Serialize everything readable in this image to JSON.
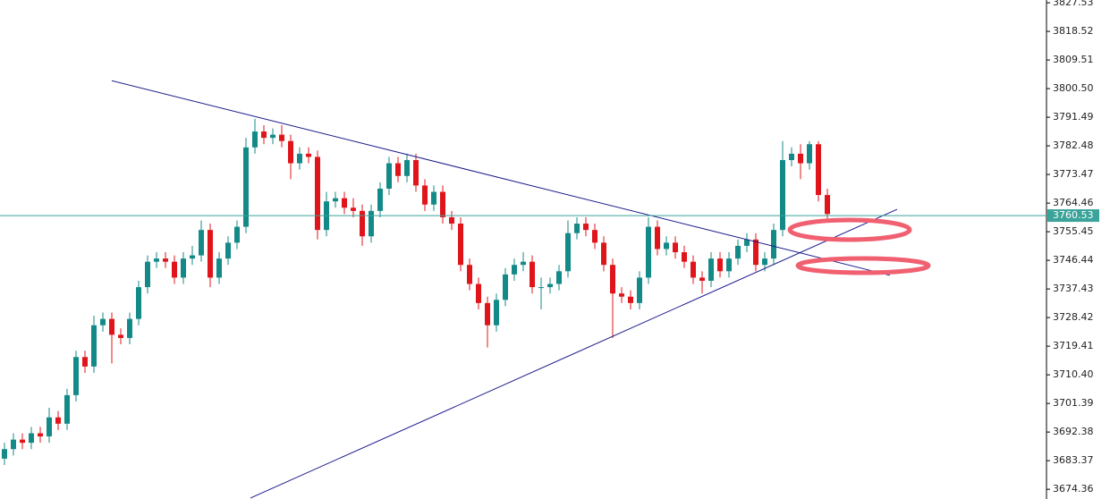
{
  "chart_data": {
    "type": "candlestick",
    "ylim": [
      3671.3,
      3828.4
    ],
    "yticks": [
      3674.36,
      3683.37,
      3692.38,
      3701.39,
      {
        "value": 3710.4,
        "label": "3710.40"
      },
      3719.41,
      3728.42,
      3737.43,
      3746.44,
      3755.45,
      3764.46,
      3773.47,
      3782.48,
      3791.49,
      {
        "value": 3800.5,
        "label": "3800.50"
      },
      3809.51,
      3818.52,
      3827.53
    ],
    "up_color": "#138a87",
    "down_color": "#e0151b",
    "open": [
      3684,
      3687,
      3690,
      3689,
      3692,
      3691,
      3697,
      3695,
      3704,
      3716,
      3713,
      3726,
      3728,
      3723,
      3722,
      3728,
      3738,
      3746,
      3747,
      3746,
      3741,
      3747,
      3748,
      3756,
      3741,
      3747,
      3752,
      3757,
      3782,
      3787,
      3785,
      3786,
      3784,
      3777,
      3780,
      3779,
      3756,
      3765,
      3766,
      3763,
      3762,
      3754,
      3762,
      3769,
      3777,
      3773,
      3778,
      3770,
      3764,
      3768,
      3760,
      3758,
      3745,
      3739,
      3733,
      3726,
      3734,
      3742,
      3745,
      3746,
      3738,
      3738,
      3739,
      3743,
      3755,
      3758,
      3756,
      3752,
      3745,
      3736,
      3735,
      3733,
      3741,
      3757,
      3750,
      3752,
      3749,
      3746,
      3741,
      3740,
      3747,
      3743,
      3747,
      3751,
      3753,
      3745,
      3747,
      3756,
      3778,
      3780,
      3777,
      3783,
      3767
    ],
    "high": [
      3689,
      3692,
      3692,
      3694,
      3694,
      3700,
      3699,
      3706,
      3718,
      3718,
      3729,
      3730,
      3730,
      3725,
      3730,
      3740,
      3748,
      3749,
      3749,
      3748,
      3749,
      3751,
      3759,
      3758,
      3749,
      3754,
      3759,
      3785,
      3791,
      3789,
      3788,
      3789,
      3786,
      3782,
      3782,
      3781,
      3768,
      3768,
      3768,
      3766,
      3764,
      3764,
      3771,
      3779,
      3779,
      3780,
      3780,
      3772,
      3770,
      3770,
      3762,
      3760,
      3747,
      3741,
      3735,
      3736,
      3744,
      3747,
      3749,
      3748,
      3741,
      3741,
      3745,
      3759,
      3760,
      3760,
      3758,
      3754,
      3747,
      3738,
      3737,
      3743,
      3760,
      3759,
      3754,
      3754,
      3751,
      3748,
      3743,
      3749,
      3749,
      3749,
      3753,
      3755,
      3755,
      3749,
      3758,
      3784,
      3782,
      3783,
      3784,
      3784,
      3769
    ],
    "low": [
      3682,
      3685,
      3687,
      3687,
      3689,
      3689,
      3693,
      3693,
      3702,
      3711,
      3711,
      3724,
      3714,
      3720,
      3720,
      3726,
      3736,
      3744,
      3744,
      3739,
      3739,
      3745,
      3746,
      3738,
      3739,
      3745,
      3750,
      3755,
      3780,
      3783,
      3783,
      3782,
      3772,
      3775,
      3777,
      3753,
      3754,
      3763,
      3761,
      3760,
      3751,
      3752,
      3760,
      3767,
      3771,
      3771,
      3768,
      3762,
      3762,
      3758,
      3756,
      3743,
      3737,
      3731,
      3719,
      3724,
      3732,
      3740,
      3743,
      3736,
      3731,
      3736,
      3737,
      3741,
      3753,
      3754,
      3750,
      3743,
      3722,
      3733,
      3731,
      3731,
      3739,
      3748,
      3748,
      3747,
      3744,
      3739,
      3736,
      3738,
      3741,
      3741,
      3745,
      3749,
      3743,
      3743,
      3745,
      3754,
      3776,
      3772,
      3775,
      3765,
      3759
    ],
    "close": [
      3687,
      3690,
      3689,
      3692,
      3691,
      3697,
      3695,
      3704,
      3716,
      3713,
      3726,
      3728,
      3723,
      3722,
      3728,
      3738,
      3746,
      3747,
      3746,
      3741,
      3747,
      3748,
      3756,
      3741,
      3747,
      3752,
      3757,
      3782,
      3787,
      3785,
      3786,
      3784,
      3777,
      3780,
      3779,
      3756,
      3765,
      3766,
      3763,
      3762,
      3754,
      3762,
      3769,
      3777,
      3773,
      3778,
      3770,
      3764,
      3768,
      3760,
      3758,
      3745,
      3739,
      3733,
      3726,
      3734,
      3742,
      3745,
      3746,
      3738,
      3738,
      3739,
      3743,
      3755,
      3758,
      3756,
      3752,
      3745,
      3736,
      3735,
      3733,
      3741,
      3757,
      3750,
      3752,
      3749,
      3746,
      3741,
      3740,
      3747,
      3743,
      3747,
      3751,
      3753,
      3745,
      3747,
      3756,
      3778,
      3780,
      3777,
      3783,
      3767,
      3761
    ],
    "trendlines": [
      {
        "x": [
          12,
          99
        ],
        "y": [
          3803.0,
          3741.7
        ],
        "color": "#1a1a8c"
      },
      {
        "x": [
          27.5,
          99.8
        ],
        "y": [
          3671.6,
          3762.5
        ],
        "color": "#1a1a8c"
      }
    ],
    "last_price": 3760.53,
    "last_price_color": "#3aa39a"
  }
}
